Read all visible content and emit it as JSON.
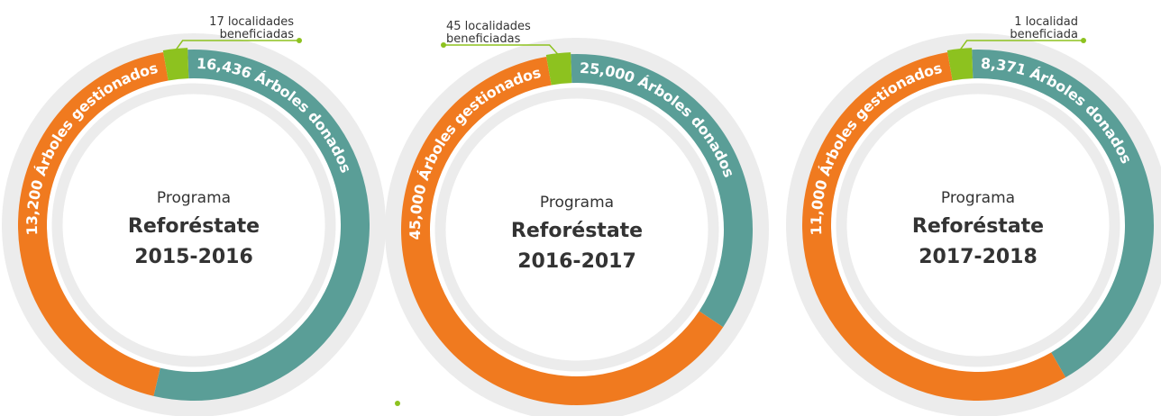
{
  "chart_data": [
    {
      "type": "donut",
      "title_lines": [
        "Programa",
        "Reforéstate",
        "2015-2016"
      ],
      "values": [
        13200,
        16436,
        17
      ],
      "value_labels": [
        "13,200 Árboles gestionados",
        "16,436 Árboles donados",
        [
          "17 localidades",
          "beneficiadas"
        ]
      ],
      "colors": [
        "#f07a1f",
        "#5a9e97",
        "#8dc21f"
      ]
    },
    {
      "type": "donut",
      "title_lines": [
        "Programa",
        "Reforéstate",
        "2016-2017"
      ],
      "values": [
        45000,
        25000,
        45
      ],
      "value_labels": [
        "45,000 Árboles gestionados",
        "25,000 Árboles donados",
        [
          "45 localidades",
          "beneficiadas"
        ]
      ],
      "colors": [
        "#f07a1f",
        "#5a9e97",
        "#8dc21f"
      ]
    },
    {
      "type": "donut",
      "title_lines": [
        "Programa",
        "Reforéstate",
        "2017-2018"
      ],
      "values": [
        11000,
        8371,
        1
      ],
      "value_labels": [
        "11,000 Árboles gestionados",
        "8,371 Árboles donados",
        [
          "1 localidad",
          "beneficiada"
        ]
      ],
      "colors": [
        "#f07a1f",
        "#5a9e97",
        "#8dc21f"
      ]
    }
  ]
}
